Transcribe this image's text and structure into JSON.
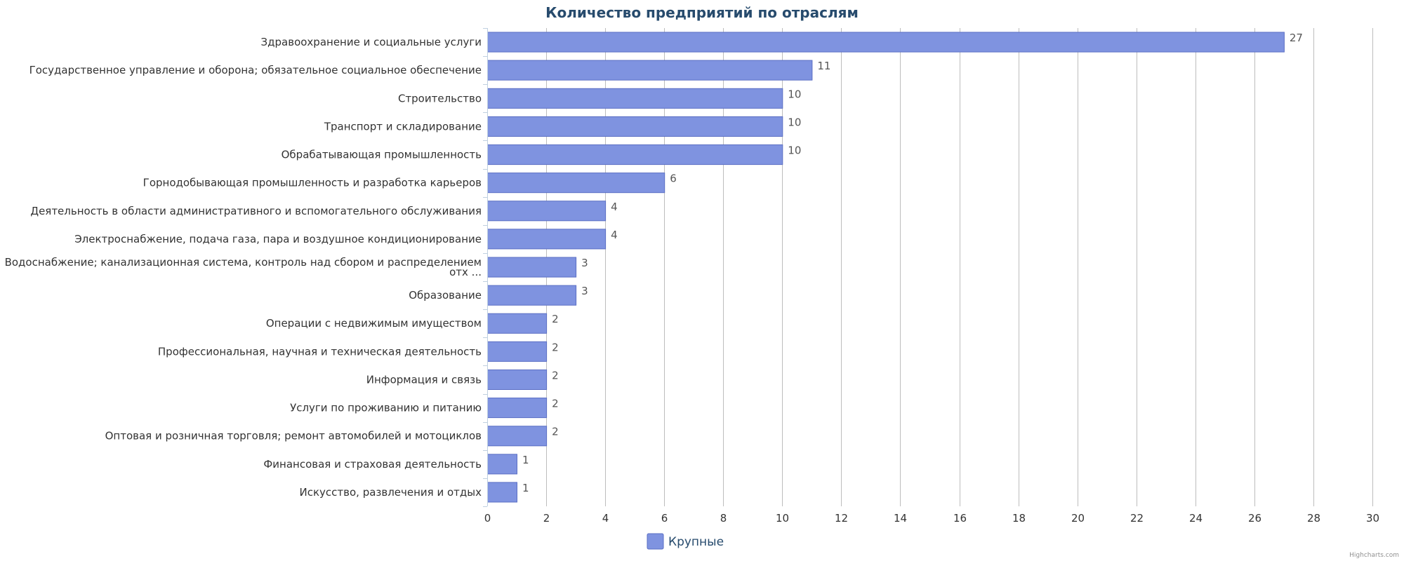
{
  "chart_data": {
    "type": "bar",
    "orientation": "horizontal",
    "title": "Количество предприятий по отраслям",
    "categories": [
      "Здравоохранение и социальные услуги",
      "Государственное управление и оборона; обязательное социальное обеспечение",
      "Строительство",
      "Транспорт и складирование",
      "Обрабатывающая промышленность",
      "Горнодобывающая промышленность и разработка карьеров",
      "Деятельность в области административного и вспомогательного обслуживания",
      "Электроснабжение, подача газа, пара и воздушное кондиционирование",
      [
        "Водоснабжение; канализационная система, контроль над сбором и распределением",
        "отх ..."
      ],
      "Образование",
      "Операции с недвижимым имуществом",
      "Профессиональная, научная и техническая деятельность",
      "Информация и связь",
      "Услуги по проживанию и питанию",
      "Оптовая и розничная торговля; ремонт автомобилей и мотоциклов",
      "Финансовая и страховая деятельность",
      "Искусство, развлечения и отдых"
    ],
    "series": [
      {
        "name": "Крупные",
        "color": "#7f93e0",
        "values": [
          27,
          11,
          10,
          10,
          10,
          6,
          4,
          4,
          3,
          3,
          2,
          2,
          2,
          2,
          2,
          1,
          1
        ]
      }
    ],
    "xlim": [
      0,
      30
    ],
    "x_ticks": [
      "0",
      "2",
      "4",
      "6",
      "8",
      "10",
      "12",
      "14",
      "16",
      "18",
      "20",
      "22",
      "24",
      "26",
      "28",
      "30"
    ],
    "grid": true,
    "legend_position": "bottom-center",
    "data_labels": true
  },
  "credits": "Highcharts.com",
  "colors": {
    "bar_fill": "#7f93e0",
    "bar_stroke": "#5b6fc4",
    "grid": "#bdbdbd",
    "title": "#274b6d"
  }
}
